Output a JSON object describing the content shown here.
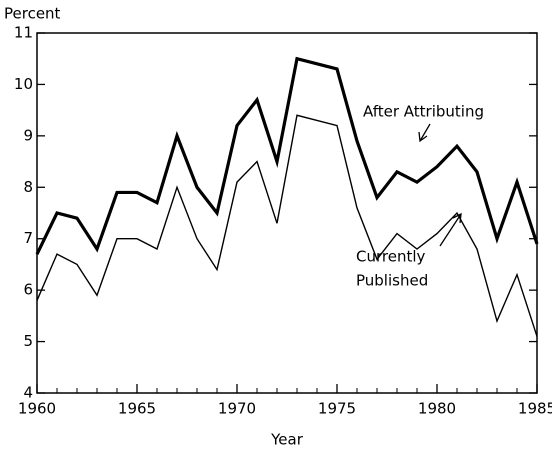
{
  "chart_data": {
    "type": "line",
    "y_label": "Percent",
    "x_label": "Year",
    "x": [
      1960,
      1961,
      1962,
      1963,
      1964,
      1965,
      1966,
      1967,
      1968,
      1969,
      1970,
      1971,
      1972,
      1973,
      1974,
      1975,
      1976,
      1977,
      1978,
      1979,
      1980,
      1981,
      1982,
      1983,
      1984,
      1985
    ],
    "series": [
      {
        "name": "After Attributing",
        "color": "#000000",
        "width": 3.2,
        "values": [
          6.7,
          7.5,
          7.4,
          6.8,
          7.9,
          7.9,
          7.7,
          9.0,
          8.0,
          7.5,
          9.2,
          9.7,
          8.5,
          10.5,
          10.4,
          10.3,
          8.9,
          7.8,
          8.3,
          8.1,
          8.4,
          8.8,
          8.3,
          7.0,
          8.1,
          6.9
        ]
      },
      {
        "name": "Currently Published",
        "color": "#000000",
        "width": 1.4,
        "values": [
          5.8,
          6.7,
          6.5,
          5.9,
          7.0,
          7.0,
          6.8,
          8.0,
          7.0,
          6.4,
          8.1,
          8.5,
          7.3,
          9.4,
          9.3,
          9.2,
          7.6,
          6.6,
          7.1,
          6.8,
          7.1,
          7.5,
          6.8,
          5.4,
          6.3,
          5.1
        ]
      }
    ],
    "annotations": [
      {
        "lines": [
          "After Attributing"
        ]
      },
      {
        "lines": [
          "Currently",
          "Published"
        ]
      }
    ],
    "xlim": [
      1960,
      1985
    ],
    "xticks": [
      1960,
      1965,
      1970,
      1975,
      1980,
      1985
    ],
    "ylim": [
      4,
      11
    ],
    "yticks": [
      4,
      5,
      6,
      7,
      8,
      9,
      10,
      11
    ],
    "grid": false
  }
}
